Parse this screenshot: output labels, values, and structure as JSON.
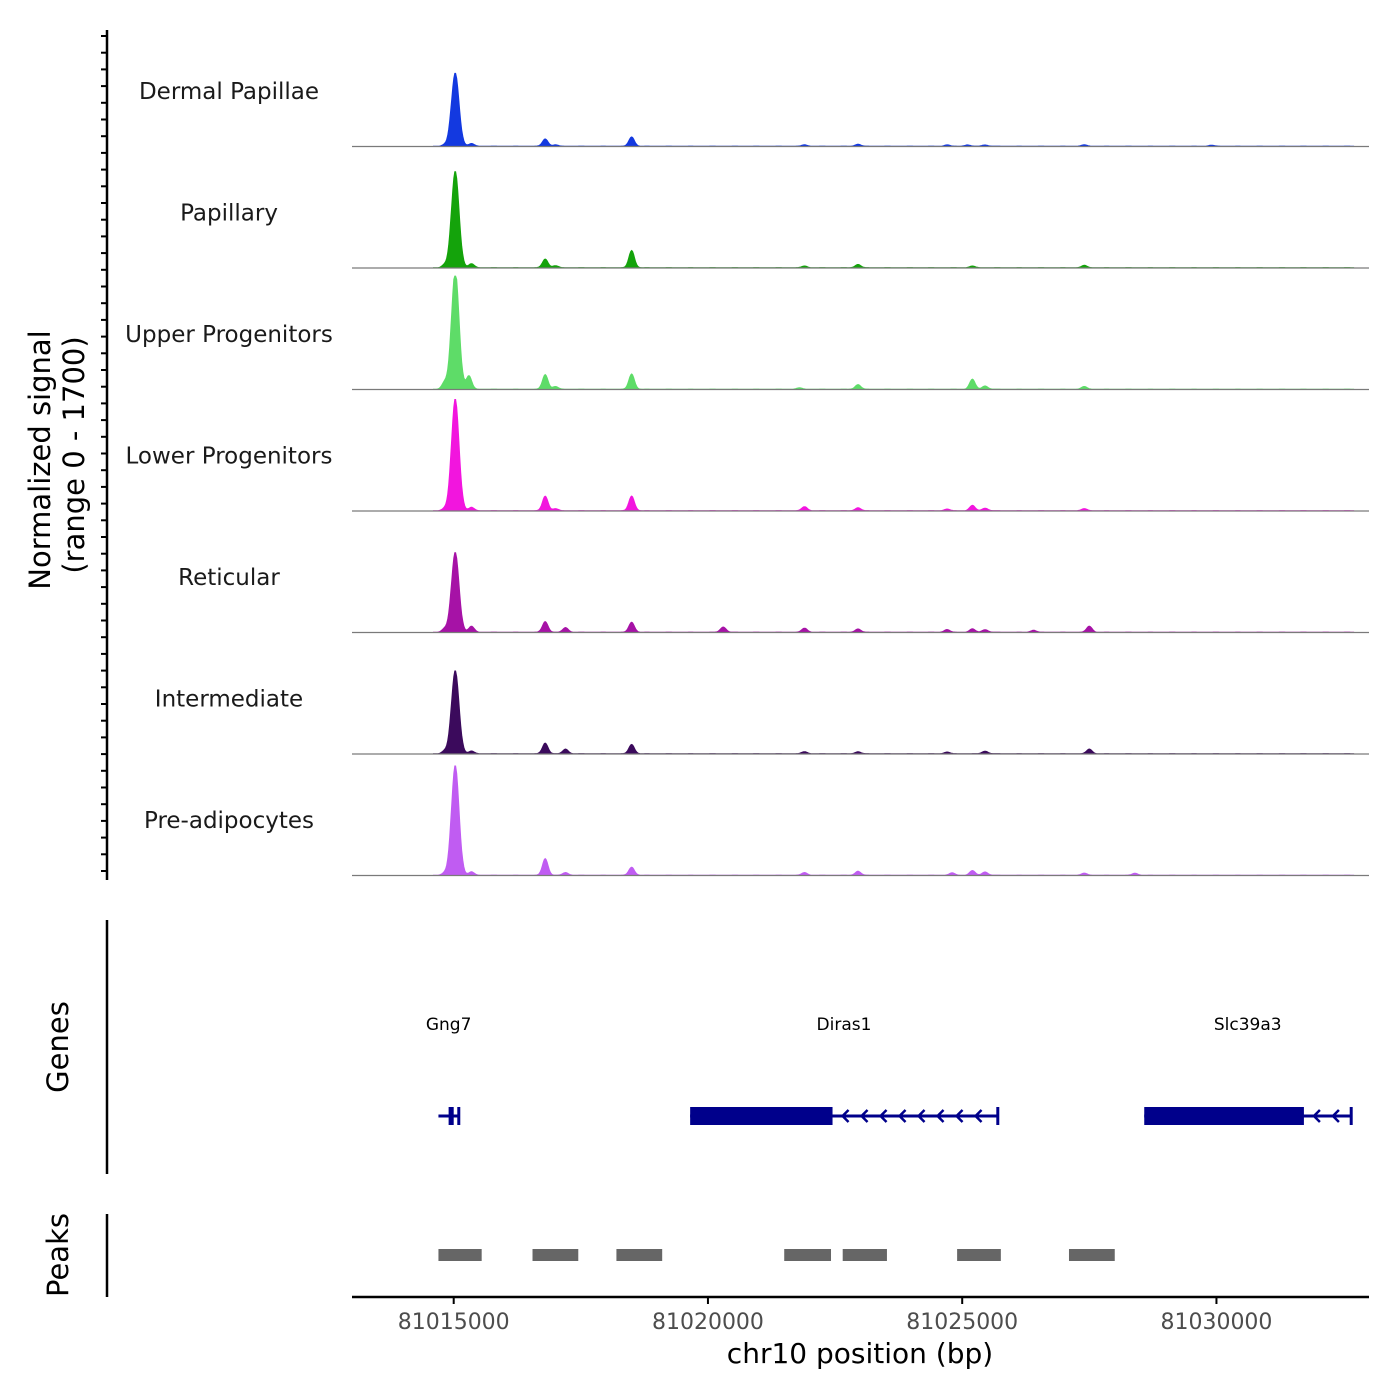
{
  "chart_data": {
    "type": "area",
    "title": "",
    "chromosome": "chr10",
    "xlabel": "chr10 position (bp)",
    "xlim": [
      81013000,
      81033000
    ],
    "x_ticks": [
      81015000,
      81020000,
      81025000,
      81030000
    ],
    "x_tick_labels": [
      "81015000",
      "81020000",
      "81025000",
      "81030000"
    ],
    "coverage": {
      "ylabel_line1": "Normalized signal",
      "ylabel_line2": "(range 0 - 1700)",
      "ylim": [
        0,
        1700
      ],
      "series": [
        {
          "name": "Dermal Papillae",
          "color": "#1339E0",
          "peaks": [
            [
              81014820,
              20
            ],
            [
              81015030,
              1100
            ],
            [
              81015350,
              40
            ],
            [
              81016800,
              110
            ],
            [
              81017000,
              20
            ],
            [
              81018500,
              140
            ],
            [
              81021900,
              20
            ],
            [
              81022950,
              30
            ],
            [
              81024700,
              20
            ],
            [
              81025100,
              20
            ],
            [
              81025450,
              20
            ],
            [
              81027400,
              20
            ],
            [
              81029900,
              15
            ]
          ]
        },
        {
          "name": "Papillary",
          "color": "#14A30B",
          "peaks": [
            [
              81014820,
              40
            ],
            [
              81015030,
              1450
            ],
            [
              81015350,
              60
            ],
            [
              81016800,
              130
            ],
            [
              81017000,
              30
            ],
            [
              81018500,
              260
            ],
            [
              81021900,
              25
            ],
            [
              81022950,
              50
            ],
            [
              81025200,
              25
            ],
            [
              81027400,
              35
            ]
          ]
        },
        {
          "name": "Upper Progenitors",
          "color": "#5EDC68",
          "peaks": [
            [
              81014820,
              100
            ],
            [
              81015030,
              1780
            ],
            [
              81015300,
              200
            ],
            [
              81016800,
              220
            ],
            [
              81017000,
              40
            ],
            [
              81018500,
              230
            ],
            [
              81021800,
              20
            ],
            [
              81022950,
              70
            ],
            [
              81025200,
              150
            ],
            [
              81025450,
              50
            ],
            [
              81027400,
              40
            ]
          ]
        },
        {
          "name": "Lower Progenitors",
          "color": "#F215DE",
          "peaks": [
            [
              81014820,
              30
            ],
            [
              81015030,
              1680
            ],
            [
              81015350,
              50
            ],
            [
              81016800,
              220
            ],
            [
              81017000,
              30
            ],
            [
              81018500,
              220
            ],
            [
              81021900,
              60
            ],
            [
              81022950,
              45
            ],
            [
              81024700,
              25
            ],
            [
              81025200,
              80
            ],
            [
              81025450,
              40
            ],
            [
              81027400,
              30
            ]
          ]
        },
        {
          "name": "Reticular",
          "color": "#A612A6",
          "peaks": [
            [
              81014820,
              50
            ],
            [
              81015030,
              1200
            ],
            [
              81015350,
              90
            ],
            [
              81016800,
              160
            ],
            [
              81017200,
              70
            ],
            [
              81018500,
              150
            ],
            [
              81020300,
              80
            ],
            [
              81021900,
              60
            ],
            [
              81022950,
              50
            ],
            [
              81024700,
              40
            ],
            [
              81025200,
              50
            ],
            [
              81025450,
              40
            ],
            [
              81026400,
              30
            ],
            [
              81027500,
              90
            ]
          ]
        },
        {
          "name": "Intermediate",
          "color": "#3B0A5C",
          "peaks": [
            [
              81014820,
              40
            ],
            [
              81015030,
              1250
            ],
            [
              81015350,
              40
            ],
            [
              81016800,
              160
            ],
            [
              81017200,
              70
            ],
            [
              81018500,
              140
            ],
            [
              81021900,
              30
            ],
            [
              81022950,
              30
            ],
            [
              81024700,
              25
            ],
            [
              81025450,
              40
            ],
            [
              81027500,
              70
            ]
          ]
        },
        {
          "name": "Pre-adipocytes",
          "color": "#C05CF2",
          "peaks": [
            [
              81014820,
              30
            ],
            [
              81015030,
              1650
            ],
            [
              81015350,
              50
            ],
            [
              81016800,
              250
            ],
            [
              81017200,
              40
            ],
            [
              81018500,
              120
            ],
            [
              81021900,
              40
            ],
            [
              81022950,
              60
            ],
            [
              81024800,
              35
            ],
            [
              81025200,
              70
            ],
            [
              81025450,
              50
            ],
            [
              81027400,
              30
            ],
            [
              81028400,
              30
            ]
          ]
        }
      ]
    },
    "genes": {
      "ylabel": "Genes",
      "color": "#00008B",
      "items": [
        {
          "name": "Gng7",
          "start": 81014700,
          "end": 81015100,
          "thick_start": 81014900,
          "thick_end": 81015000,
          "strand": "-"
        },
        {
          "name": "Diras1",
          "start": 81019650,
          "end": 81025700,
          "thick_start": 81019650,
          "thick_end": 81022450,
          "strand": "-"
        },
        {
          "name": "Slc39a3",
          "start": 81028580,
          "end": 81032650,
          "thick_start": 81028580,
          "thick_end": 81031720,
          "strand": "-"
        }
      ]
    },
    "peaks": {
      "ylabel": "Peaks",
      "color": "#666666",
      "regions": [
        [
          81014700,
          81015550
        ],
        [
          81016550,
          81017450
        ],
        [
          81018200,
          81019100
        ],
        [
          81021500,
          81022420
        ],
        [
          81022650,
          81023520
        ],
        [
          81024900,
          81025760
        ],
        [
          81027100,
          81028000
        ]
      ]
    }
  }
}
